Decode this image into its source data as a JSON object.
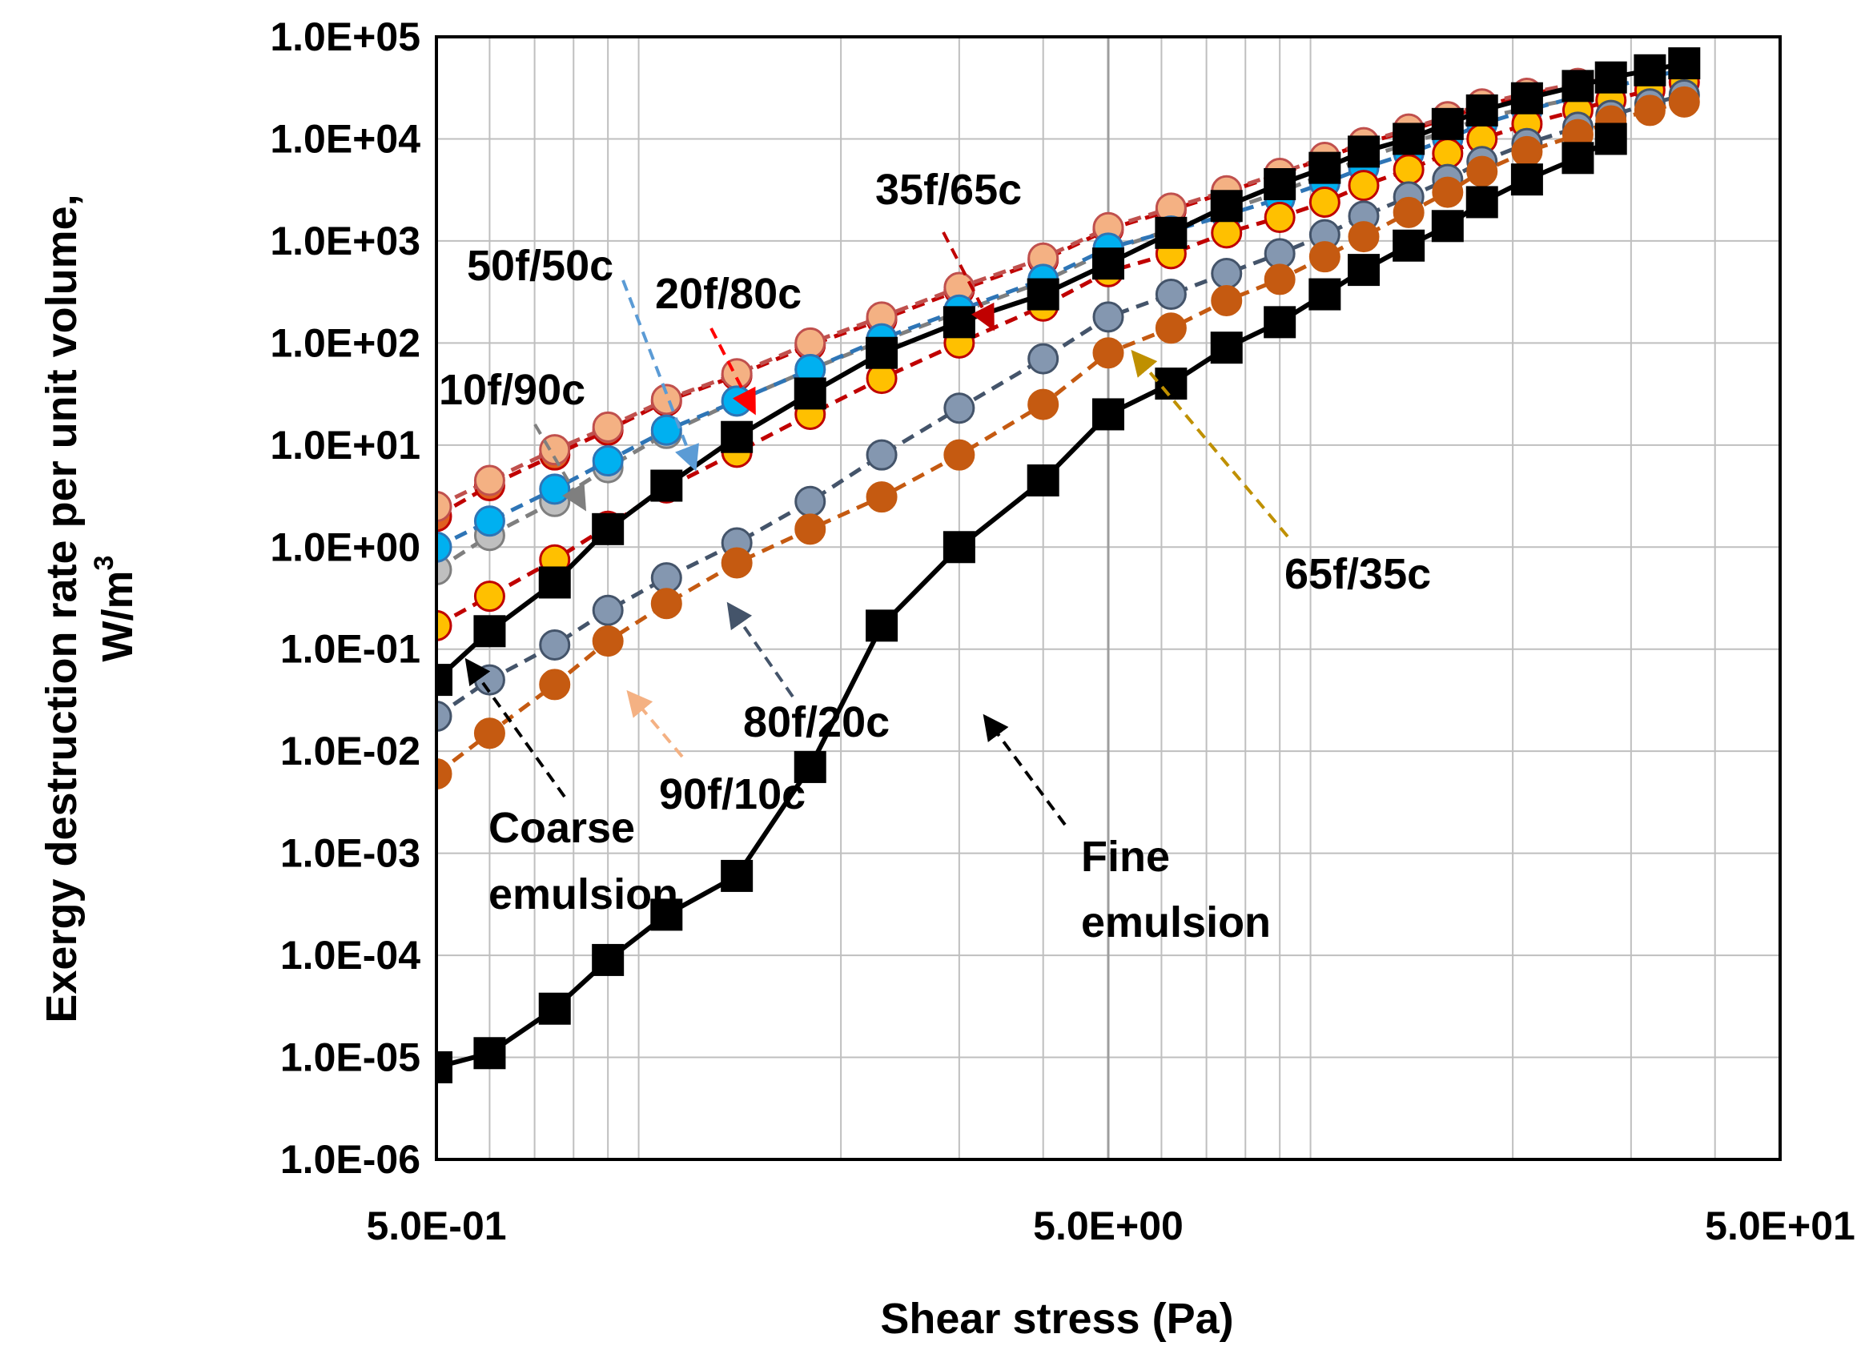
{
  "chart_data": {
    "type": "line",
    "title": "",
    "xlabel": "Shear stress (Pa)",
    "ylabel": "Exergy destruction rate per unit volume,",
    "ylabel_units": "W/m",
    "ylabel_sup": "3",
    "xscale": "log",
    "yscale": "log",
    "xlim": [
      0.5,
      50
    ],
    "ylim": [
      1e-06,
      100000.0
    ],
    "grid": true,
    "legend": "none",
    "x_tick_labels": [
      {
        "value": 0.5,
        "label": "5.0E-01"
      },
      {
        "value": 5,
        "label": "5.0E+00"
      },
      {
        "value": 50,
        "label": "5.0E+01"
      }
    ],
    "y_tick_labels": [
      {
        "value": 100000.0,
        "label": "1.0E+05"
      },
      {
        "value": 10000.0,
        "label": "1.0E+04"
      },
      {
        "value": 1000.0,
        "label": "1.0E+03"
      },
      {
        "value": 100.0,
        "label": "1.0E+02"
      },
      {
        "value": 10.0,
        "label": "1.0E+01"
      },
      {
        "value": 1.0,
        "label": "1.0E+00"
      },
      {
        "value": 0.1,
        "label": "1.0E-01"
      },
      {
        "value": 0.01,
        "label": "1.0E-02"
      },
      {
        "value": 0.001,
        "label": "1.0E-03"
      },
      {
        "value": 0.0001,
        "label": "1.0E-04"
      },
      {
        "value": 1e-05,
        "label": "1.0E-05"
      },
      {
        "value": 1e-06,
        "label": "1.0E-06"
      }
    ],
    "x": [
      0.5,
      0.6,
      0.75,
      0.9,
      1.0,
      1.2,
      1.4,
      1.6,
      1.8,
      2.0,
      2.2,
      2.5,
      2.8,
      3.2,
      3.5,
      4.2,
      5.0,
      6.0,
      7.0,
      8.0,
      9.0,
      10,
      11,
      12,
      13,
      14,
      16,
      18,
      20,
      22,
      24,
      26,
      28,
      32,
      35,
      40,
      45,
      50
    ],
    "series": [
      {
        "name": "Coarse emulsion",
        "style": "solid",
        "marker": "square",
        "color": "#000000",
        "face": "#000000",
        "points": [
          [
            0.5,
            0.05
          ],
          [
            0.6,
            0.15
          ],
          [
            0.75,
            0.45
          ],
          [
            0.9,
            1.5
          ],
          [
            1.1,
            4.0
          ],
          [
            1.4,
            12
          ],
          [
            1.8,
            32
          ],
          [
            2.3,
            80
          ],
          [
            3.0,
            160
          ],
          [
            4.0,
            300
          ],
          [
            5.0,
            600
          ],
          [
            6.2,
            1200
          ],
          [
            7.5,
            2200
          ],
          [
            9.0,
            3600
          ],
          [
            10.5,
            5200
          ],
          [
            12,
            7500
          ],
          [
            14,
            10000
          ],
          [
            16,
            14000
          ],
          [
            18,
            19000
          ],
          [
            21,
            25000
          ],
          [
            25,
            33000
          ],
          [
            28,
            40000
          ],
          [
            32,
            47000
          ],
          [
            36,
            55000
          ]
        ]
      },
      {
        "name": "Fine emulsion",
        "style": "solid",
        "marker": "square",
        "color": "#000000",
        "face": "#000000",
        "points": [
          [
            0.5,
            8e-06
          ],
          [
            0.6,
            1.1e-05
          ],
          [
            0.75,
            3e-05
          ],
          [
            0.9,
            9e-05
          ],
          [
            1.1,
            0.00025
          ],
          [
            1.4,
            0.0006
          ],
          [
            1.8,
            0.007
          ],
          [
            2.3,
            0.17
          ],
          [
            3.0,
            1.0
          ],
          [
            4.0,
            4.5
          ],
          [
            5.0,
            20
          ],
          [
            6.2,
            40
          ],
          [
            7.5,
            90
          ],
          [
            9.0,
            160
          ],
          [
            10.5,
            300
          ],
          [
            12,
            520
          ],
          [
            14,
            900
          ],
          [
            16,
            1400
          ],
          [
            18,
            2400
          ],
          [
            21,
            4000
          ],
          [
            25,
            6500
          ],
          [
            28,
            10000
          ]
        ]
      },
      {
        "name": "10f/90c",
        "style": "dashed",
        "marker": "circle",
        "color": "#7f7f7f",
        "face": "#bfbfbf",
        "points": [
          [
            0.5,
            0.6
          ],
          [
            0.6,
            1.3
          ],
          [
            0.75,
            2.8
          ],
          [
            0.9,
            6
          ],
          [
            1.1,
            13
          ],
          [
            1.4,
            27
          ],
          [
            1.8,
            55
          ],
          [
            2.3,
            105
          ],
          [
            3.0,
            200
          ],
          [
            4.0,
            400
          ],
          [
            5.0,
            800
          ],
          [
            6.2,
            1300
          ],
          [
            7.5,
            2000
          ],
          [
            9.0,
            3000
          ],
          [
            10.5,
            4500
          ],
          [
            12,
            6500
          ],
          [
            14,
            9000
          ],
          [
            16,
            12000
          ],
          [
            18,
            16000
          ],
          [
            21,
            20000
          ],
          [
            25,
            25000
          ]
        ]
      },
      {
        "name": "20f/80c",
        "style": "dashed",
        "marker": "circle",
        "color": "#c00000",
        "face": "#e06020",
        "points": [
          [
            0.5,
            2.0
          ],
          [
            0.6,
            4.0
          ],
          [
            0.75,
            8
          ],
          [
            0.9,
            14
          ],
          [
            1.1,
            27
          ],
          [
            1.4,
            48
          ],
          [
            1.8,
            95
          ],
          [
            2.3,
            170
          ],
          [
            3.0,
            330
          ],
          [
            4.0,
            650
          ],
          [
            5.0,
            1300
          ],
          [
            6.2,
            2000
          ],
          [
            7.5,
            3000
          ],
          [
            9.0,
            4500
          ],
          [
            10.5,
            6500
          ],
          [
            12,
            9000
          ],
          [
            14,
            12000
          ],
          [
            16,
            16000
          ],
          [
            18,
            21000
          ],
          [
            21,
            27000
          ],
          [
            25,
            34000
          ],
          [
            28,
            40000
          ]
        ]
      },
      {
        "name": "35f/65c",
        "style": "dashed",
        "marker": "circle",
        "color": "#c0504d",
        "face": "#f4b183",
        "points": [
          [
            0.5,
            2.5
          ],
          [
            0.6,
            4.5
          ],
          [
            0.75,
            9
          ],
          [
            0.9,
            15
          ],
          [
            1.1,
            28
          ],
          [
            1.4,
            50
          ],
          [
            1.8,
            100
          ],
          [
            2.3,
            180
          ],
          [
            3.0,
            350
          ],
          [
            4.0,
            680
          ],
          [
            5.0,
            1350
          ],
          [
            6.2,
            2100
          ],
          [
            7.5,
            3100
          ],
          [
            9.0,
            4600
          ],
          [
            10.5,
            6600
          ],
          [
            12,
            9200
          ],
          [
            14,
            12500
          ],
          [
            16,
            16500
          ],
          [
            18,
            22000
          ],
          [
            21,
            28000
          ],
          [
            25,
            35000
          ]
        ]
      },
      {
        "name": "50f/50c",
        "style": "dashed",
        "marker": "circle",
        "color": "#2e75b6",
        "face": "#00b0f0",
        "points": [
          [
            0.5,
            1.0
          ],
          [
            0.6,
            1.8
          ],
          [
            0.75,
            3.7
          ],
          [
            0.9,
            7
          ],
          [
            1.1,
            14
          ],
          [
            1.4,
            27
          ],
          [
            1.8,
            55
          ],
          [
            2.3,
            110
          ],
          [
            3.0,
            210
          ],
          [
            4.0,
            420
          ],
          [
            5.0,
            850
          ],
          [
            6.2,
            1250
          ],
          [
            7.5,
            1800
          ],
          [
            9.0,
            2600
          ],
          [
            10.5,
            3700
          ],
          [
            12,
            5200
          ],
          [
            14,
            7200
          ],
          [
            16,
            10000
          ],
          [
            18,
            14000
          ],
          [
            21,
            19000
          ],
          [
            25,
            26000
          ],
          [
            28,
            32000
          ],
          [
            32,
            40000
          ],
          [
            36,
            48000
          ]
        ]
      },
      {
        "name": "65f/35c",
        "style": "dashed",
        "marker": "circle",
        "color": "#c00000",
        "face": "#ffc000",
        "points": [
          [
            0.5,
            0.17
          ],
          [
            0.6,
            0.33
          ],
          [
            0.75,
            0.75
          ],
          [
            0.9,
            1.6
          ],
          [
            1.1,
            3.8
          ],
          [
            1.4,
            8.5
          ],
          [
            1.8,
            20
          ],
          [
            2.3,
            45
          ],
          [
            3.0,
            100
          ],
          [
            4.0,
            230
          ],
          [
            5.0,
            500
          ],
          [
            6.2,
            750
          ],
          [
            7.5,
            1200
          ],
          [
            9.0,
            1700
          ],
          [
            10.5,
            2400
          ],
          [
            12,
            3500
          ],
          [
            14,
            5000
          ],
          [
            16,
            7200
          ],
          [
            18,
            10000
          ],
          [
            21,
            14000
          ],
          [
            25,
            19000
          ],
          [
            28,
            24000
          ],
          [
            32,
            30000
          ],
          [
            36,
            36000
          ]
        ]
      },
      {
        "name": "80f/20c",
        "style": "dashed",
        "marker": "circle",
        "color": "#44546a",
        "face": "#8497b0",
        "points": [
          [
            0.5,
            0.022
          ],
          [
            0.6,
            0.05
          ],
          [
            0.75,
            0.11
          ],
          [
            0.9,
            0.24
          ],
          [
            1.1,
            0.5
          ],
          [
            1.4,
            1.1
          ],
          [
            1.8,
            2.8
          ],
          [
            2.3,
            8
          ],
          [
            3.0,
            23
          ],
          [
            4.0,
            70
          ],
          [
            5.0,
            180
          ],
          [
            6.2,
            300
          ],
          [
            7.5,
            480
          ],
          [
            9.0,
            750
          ],
          [
            10.5,
            1150
          ],
          [
            12,
            1750
          ],
          [
            14,
            2700
          ],
          [
            16,
            4000
          ],
          [
            18,
            6000
          ],
          [
            21,
            9000
          ],
          [
            25,
            13000
          ],
          [
            28,
            17000
          ],
          [
            32,
            22000
          ],
          [
            36,
            27000
          ]
        ]
      },
      {
        "name": "90f/10c",
        "style": "dashed",
        "marker": "circle",
        "color": "#c55a11",
        "face": "#c55a11",
        "points": [
          [
            0.5,
            0.006
          ],
          [
            0.6,
            0.015
          ],
          [
            0.75,
            0.045
          ],
          [
            0.9,
            0.12
          ],
          [
            1.1,
            0.28
          ],
          [
            1.4,
            0.7
          ],
          [
            1.8,
            1.5
          ],
          [
            2.3,
            3.1
          ],
          [
            3.0,
            8.0
          ],
          [
            4.0,
            25
          ],
          [
            5.0,
            80
          ],
          [
            6.2,
            140
          ],
          [
            7.5,
            260
          ],
          [
            9.0,
            420
          ],
          [
            10.5,
            700
          ],
          [
            12,
            1100
          ],
          [
            14,
            1900
          ],
          [
            16,
            3000
          ],
          [
            18,
            4800
          ],
          [
            21,
            7500
          ],
          [
            25,
            11000
          ],
          [
            28,
            15000
          ],
          [
            32,
            19000
          ],
          [
            36,
            23000
          ]
        ]
      }
    ],
    "annotations": [
      {
        "text": "35f/65c",
        "color": "#c00000"
      },
      {
        "text": "50f/50c",
        "color": "#5b9bd5"
      },
      {
        "text": "20f/80c",
        "color": "#ff0000"
      },
      {
        "text": "10f/90c",
        "color": "#7f7f7f"
      },
      {
        "text": "65f/35c",
        "color": "#bf9000"
      },
      {
        "text": "80f/20c",
        "color": "#44546a"
      },
      {
        "text": "90f/10c",
        "color": "#f4b183"
      },
      {
        "text": "Coarse emulsion",
        "lines": [
          "Coarse",
          "emulsion"
        ],
        "color": "#000000"
      },
      {
        "text": "Fine emulsion",
        "lines": [
          "Fine",
          "emulsion"
        ],
        "color": "#000000"
      }
    ]
  }
}
